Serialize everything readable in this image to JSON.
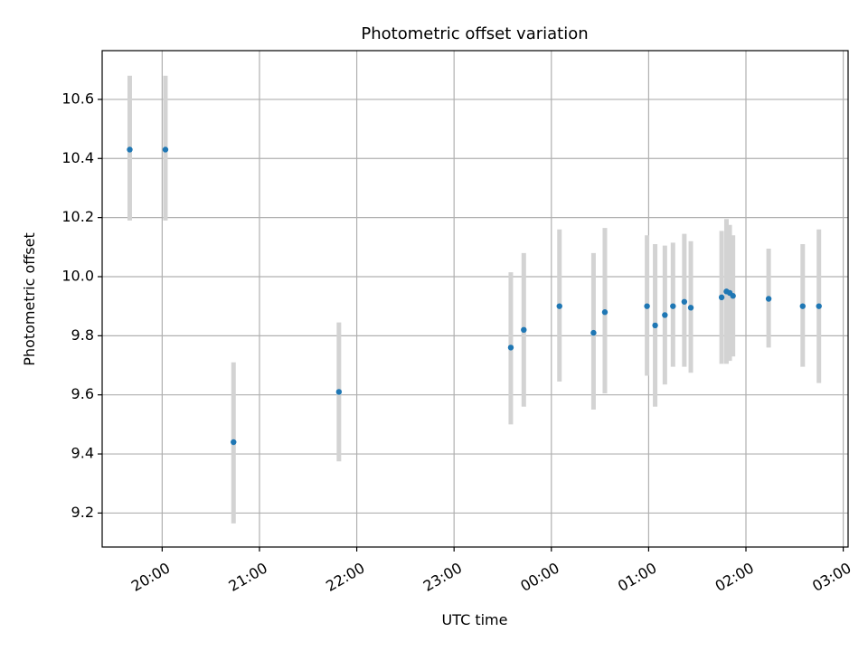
{
  "chart_data": {
    "type": "scatter",
    "title": "Photometric offset variation",
    "xlabel": "UTC time",
    "ylabel": "Photometric offset",
    "x_ticks": [
      "20:00",
      "21:00",
      "22:00",
      "23:00",
      "00:00",
      "01:00",
      "02:00",
      "03:00"
    ],
    "y_ticks": [
      "9.2",
      "9.4",
      "9.6",
      "9.8",
      "10.0",
      "10.2",
      "10.4",
      "10.6"
    ],
    "xlim": [
      "19:23",
      "03:03"
    ],
    "ylim": [
      9.085,
      10.765
    ],
    "grid": true,
    "colors": {
      "point": "#1f77b4",
      "errorbar": "#d3d3d3",
      "grid": "#b0b0b0"
    },
    "points": [
      {
        "x": "19:40",
        "y": 10.43,
        "y_low": 10.19,
        "y_high": 10.68
      },
      {
        "x": "20:02",
        "y": 10.43,
        "y_low": 10.19,
        "y_high": 10.68
      },
      {
        "x": "20:44",
        "y": 9.44,
        "y_low": 9.165,
        "y_high": 9.71
      },
      {
        "x": "21:49",
        "y": 9.61,
        "y_low": 9.375,
        "y_high": 9.845
      },
      {
        "x": "23:35",
        "y": 9.76,
        "y_low": 9.5,
        "y_high": 10.015
      },
      {
        "x": "23:43",
        "y": 9.82,
        "y_low": 9.56,
        "y_high": 10.08
      },
      {
        "x": "00:05",
        "y": 9.9,
        "y_low": 9.645,
        "y_high": 10.16
      },
      {
        "x": "00:26",
        "y": 9.81,
        "y_low": 9.55,
        "y_high": 10.08
      },
      {
        "x": "00:33",
        "y": 9.88,
        "y_low": 9.605,
        "y_high": 10.165
      },
      {
        "x": "00:59",
        "y": 9.9,
        "y_low": 9.665,
        "y_high": 10.14
      },
      {
        "x": "01:04",
        "y": 9.835,
        "y_low": 9.56,
        "y_high": 10.11
      },
      {
        "x": "01:10",
        "y": 9.87,
        "y_low": 9.635,
        "y_high": 10.105
      },
      {
        "x": "01:15",
        "y": 9.9,
        "y_low": 9.695,
        "y_high": 10.115
      },
      {
        "x": "01:22",
        "y": 9.915,
        "y_low": 9.695,
        "y_high": 10.145
      },
      {
        "x": "01:26",
        "y": 9.895,
        "y_low": 9.675,
        "y_high": 10.12
      },
      {
        "x": "01:45",
        "y": 9.93,
        "y_low": 9.705,
        "y_high": 10.155
      },
      {
        "x": "01:48",
        "y": 9.95,
        "y_low": 9.705,
        "y_high": 10.195
      },
      {
        "x": "01:50",
        "y": 9.945,
        "y_low": 9.715,
        "y_high": 10.175
      },
      {
        "x": "01:52",
        "y": 9.935,
        "y_low": 9.73,
        "y_high": 10.14
      },
      {
        "x": "02:14",
        "y": 9.925,
        "y_low": 9.76,
        "y_high": 10.095
      },
      {
        "x": "02:35",
        "y": 9.9,
        "y_low": 9.695,
        "y_high": 10.11
      },
      {
        "x": "02:45",
        "y": 9.9,
        "y_low": 9.64,
        "y_high": 10.16
      }
    ]
  }
}
